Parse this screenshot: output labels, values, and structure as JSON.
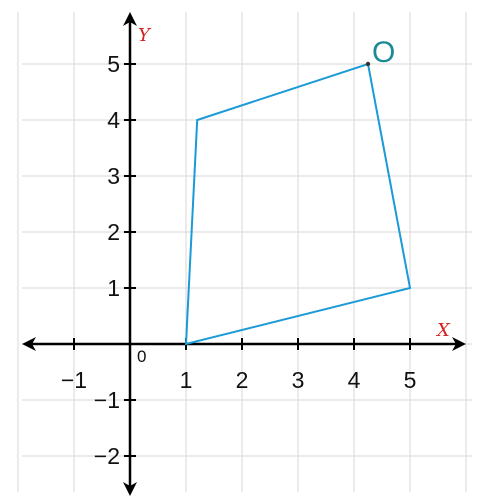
{
  "axes": {
    "x_label": "X",
    "y_label": "Y",
    "origin_label": "0",
    "x_range": [
      -2,
      6
    ],
    "y_range": [
      -2.7,
      6
    ],
    "x_ticks": [
      {
        "value": -1,
        "label": "−1"
      },
      {
        "value": 1,
        "label": "1"
      },
      {
        "value": 2,
        "label": "2"
      },
      {
        "value": 3,
        "label": "3"
      },
      {
        "value": 4,
        "label": "4"
      },
      {
        "value": 5,
        "label": "5"
      }
    ],
    "y_ticks": [
      {
        "value": -2,
        "label": "−2"
      },
      {
        "value": -1,
        "label": "−1"
      },
      {
        "value": 1,
        "label": "1"
      },
      {
        "value": 2,
        "label": "2"
      },
      {
        "value": 3,
        "label": "3"
      },
      {
        "value": 4,
        "label": "4"
      },
      {
        "value": 5,
        "label": "5"
      }
    ],
    "grid": true,
    "grid_step": 1
  },
  "shape": {
    "type": "quadrilateral",
    "vertices": [
      [
        1,
        0
      ],
      [
        1.2,
        4
      ],
      [
        4.25,
        5
      ],
      [
        5,
        1
      ]
    ]
  },
  "point": {
    "label": "O",
    "x": 4.25,
    "y": 5
  },
  "colors": {
    "shape": "#1a9ad6",
    "axis_label": "#d62020",
    "point_label": "#1a8a96",
    "grid": "#d7d7d7",
    "axis": "#000000"
  }
}
